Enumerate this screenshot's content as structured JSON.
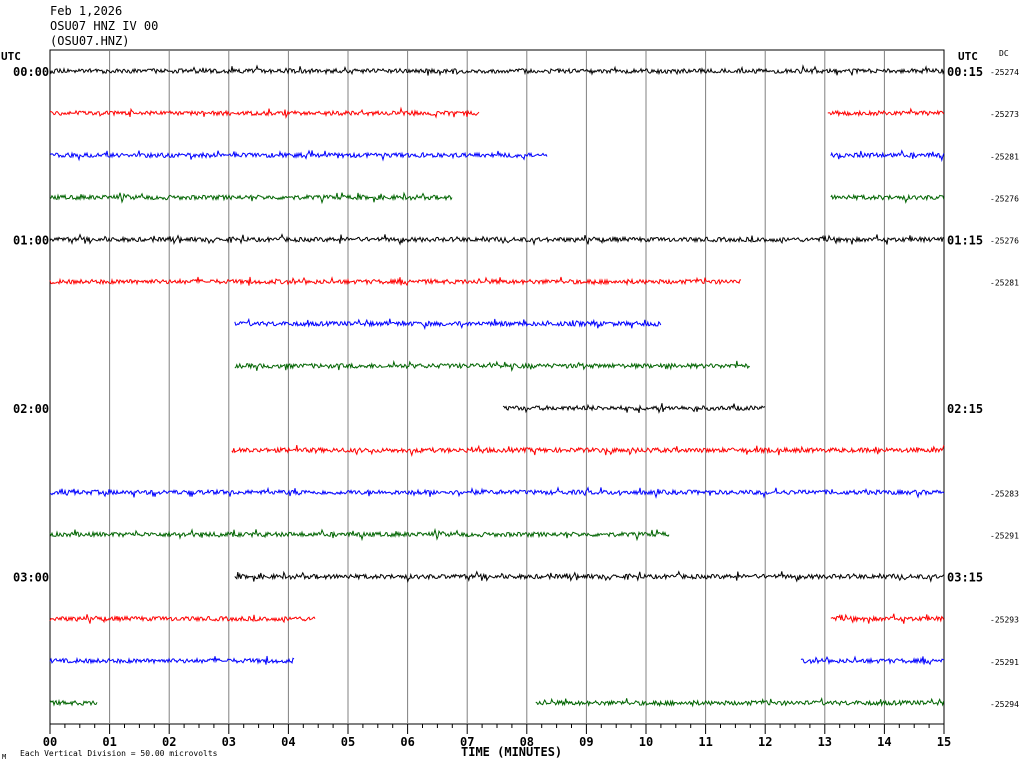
{
  "header": {
    "date": "Feb 1,2026",
    "station": "OSU07 HNZ IV 00",
    "channel": "(OSU07.HNZ)"
  },
  "axis": {
    "utc_left": "UTC",
    "utc_right": "UTC",
    "dc": "DC",
    "xlabel": "TIME (MINUTES)",
    "footnote": "Each Vertical Division =   50.00 microvolts",
    "corner_mark": "M"
  },
  "chart_data": {
    "type": "line",
    "x_ticks": [
      "00",
      "01",
      "02",
      "03",
      "04",
      "05",
      "06",
      "07",
      "08",
      "09",
      "10",
      "11",
      "12",
      "13",
      "14",
      "15"
    ],
    "xlim": [
      0,
      15
    ],
    "trace_colors": [
      "#000000",
      "#ff0000",
      "#0000ff",
      "#006400"
    ],
    "traces": [
      {
        "left": "00:00",
        "right": "00:15",
        "dc": "-25274",
        "segments": [
          [
            0,
            15
          ]
        ]
      },
      {
        "left": "",
        "right": "",
        "dc": "-25273",
        "segments": [
          [
            0,
            7.2
          ],
          [
            13.05,
            15
          ]
        ]
      },
      {
        "left": "",
        "right": "",
        "dc": "-25281",
        "segments": [
          [
            0,
            8.35
          ],
          [
            13.1,
            15
          ]
        ]
      },
      {
        "left": "",
        "right": "",
        "dc": "-25276",
        "segments": [
          [
            0,
            6.75
          ],
          [
            13.1,
            15
          ]
        ]
      },
      {
        "left": "01:00",
        "right": "01:15",
        "dc": "-25276",
        "segments": [
          [
            0,
            15
          ]
        ]
      },
      {
        "left": "",
        "right": "",
        "dc": "-25281",
        "segments": [
          [
            0,
            11.6
          ]
        ]
      },
      {
        "left": "",
        "right": "",
        "dc": "",
        "segments": [
          [
            3.1,
            10.25
          ]
        ]
      },
      {
        "left": "",
        "right": "",
        "dc": "",
        "segments": [
          [
            3.1,
            11.75
          ]
        ]
      },
      {
        "left": "02:00",
        "right": "02:15",
        "dc": "",
        "segments": [
          [
            7.6,
            12.0
          ]
        ]
      },
      {
        "left": "",
        "right": "",
        "dc": "",
        "segments": [
          [
            3.05,
            15
          ]
        ]
      },
      {
        "left": "",
        "right": "",
        "dc": "-25283",
        "segments": [
          [
            0,
            15
          ]
        ]
      },
      {
        "left": "",
        "right": "",
        "dc": "-25291",
        "segments": [
          [
            0,
            10.4
          ]
        ]
      },
      {
        "left": "03:00",
        "right": "03:15",
        "dc": "",
        "segments": [
          [
            3.1,
            15
          ]
        ]
      },
      {
        "left": "",
        "right": "",
        "dc": "-25293",
        "segments": [
          [
            0,
            4.45
          ],
          [
            13.1,
            15
          ]
        ]
      },
      {
        "left": "",
        "right": "",
        "dc": "-25291",
        "segments": [
          [
            0,
            4.1
          ],
          [
            12.6,
            15
          ]
        ]
      },
      {
        "left": "",
        "right": "",
        "dc": "-25294",
        "segments": [
          [
            0,
            0.8
          ],
          [
            8.15,
            15
          ]
        ]
      }
    ]
  }
}
